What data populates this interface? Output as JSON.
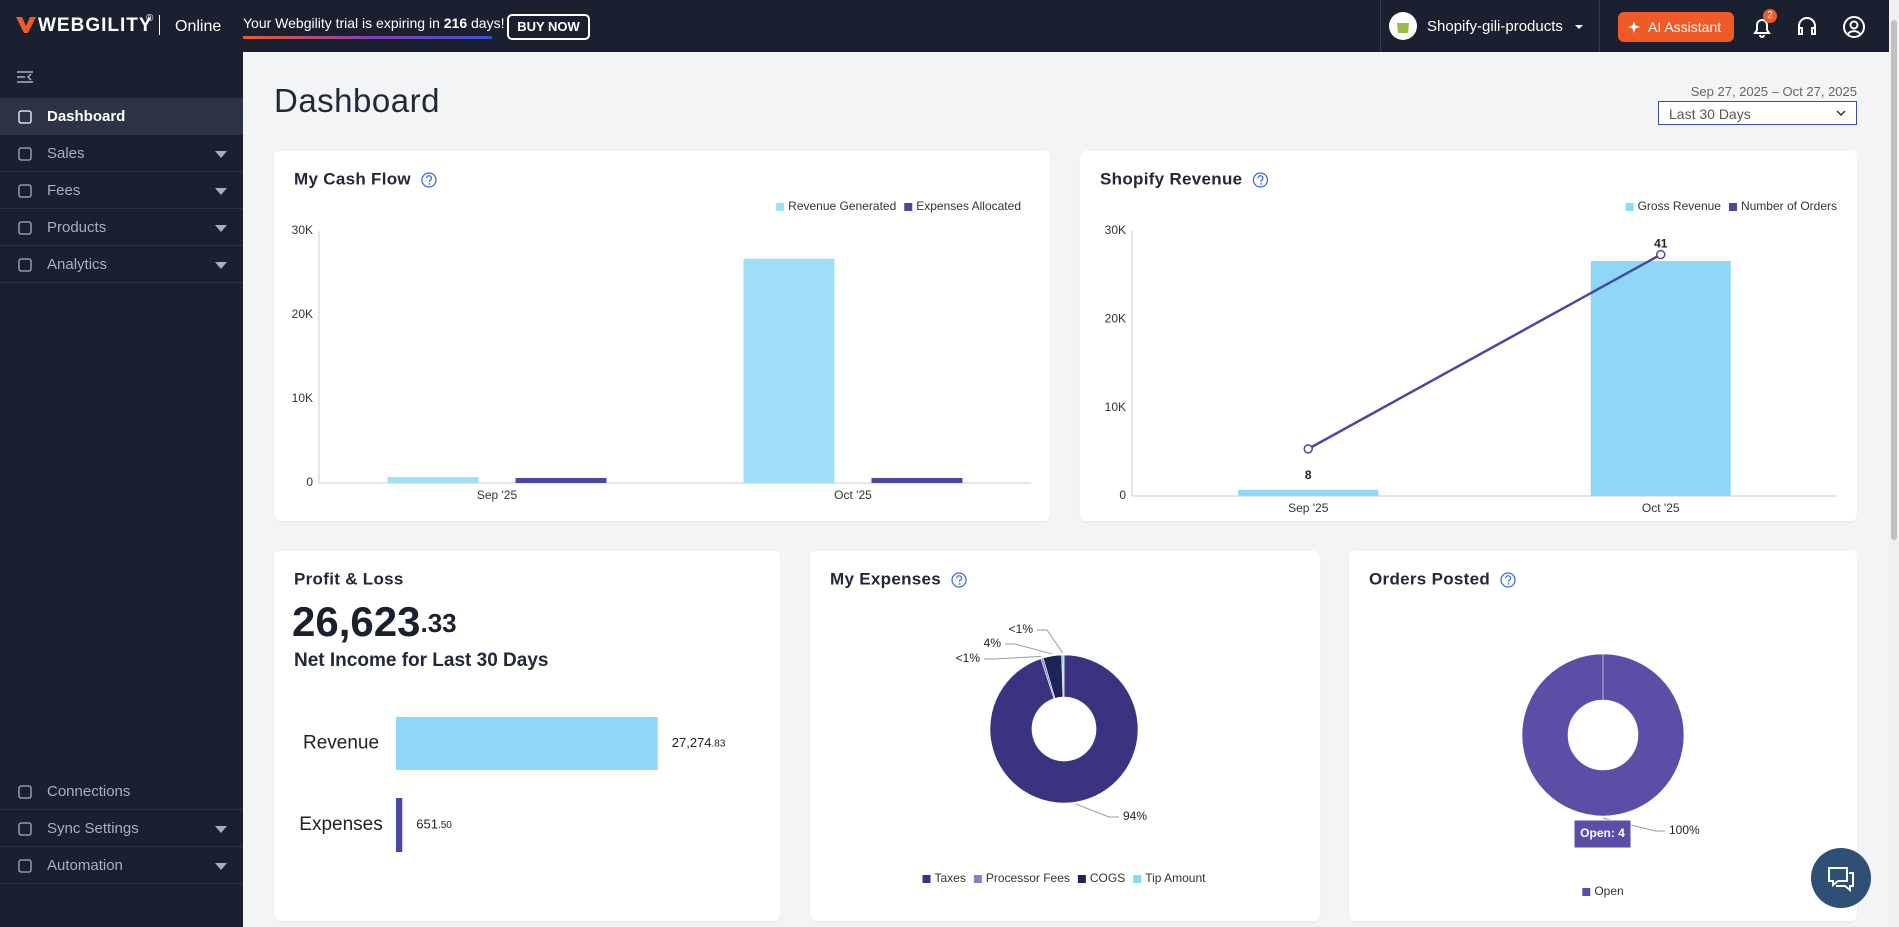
{
  "header": {
    "brand": "WEBGILITY",
    "brand_mark": "®",
    "edition": "Online",
    "trial_text": "Your Webgility trial is expiring in",
    "trial_days": "216",
    "trial_unit": "days!",
    "buy_now": "BUY NOW",
    "store": "Shopify-gili-products",
    "ai_assistant": "AI Assistant",
    "notification_count": 2
  },
  "sidebar": {
    "items": [
      {
        "label": "Dashboard",
        "active": true
      },
      {
        "label": "Sales",
        "expandable": true
      },
      {
        "label": "Fees",
        "expandable": true
      },
      {
        "label": "Products",
        "expandable": true
      },
      {
        "label": "Analytics",
        "expandable": true
      }
    ],
    "footer_items": [
      {
        "label": "Connections"
      },
      {
        "label": "Sync Settings",
        "expandable": true
      },
      {
        "label": "Automation",
        "expandable": true
      }
    ]
  },
  "page": {
    "title": "Dashboard",
    "date_range": "Sep 27, 2025 – Oct 27, 2025",
    "period": "Last 30 Days"
  },
  "profit_loss": {
    "title": "Profit & Loss",
    "net_income": "26,623.33",
    "caption": "Net Income for Last 30 Days"
  },
  "chart_data": [
    {
      "type": "bar",
      "title": "My Cash Flow",
      "legend": "top-right",
      "grid": false,
      "categories": [
        "Sep '25",
        "Oct '25"
      ],
      "series": [
        {
          "name": "Revenue Generated",
          "color": "#a0dff8",
          "values": [
            700,
            26700
          ]
        },
        {
          "name": "Expenses Allocated",
          "color": "#4c48a0",
          "values": [
            600,
            600
          ]
        }
      ],
      "ylim": [
        0,
        30000
      ],
      "yticks": [
        0,
        {
          "value": 10000,
          "label": "10K"
        },
        {
          "value": 20000,
          "label": "20K"
        },
        {
          "value": 30000,
          "label": "30K"
        }
      ]
    },
    {
      "type": "bar",
      "title": "Shopify Revenue",
      "legend": "top-right",
      "grid": false,
      "categories": [
        "Sep '25",
        "Oct '25"
      ],
      "series": [
        {
          "name": "Gross Revenue",
          "color": "#8ed7f7",
          "values": [
            700,
            26600
          ]
        },
        {
          "name": "Number of Orders",
          "color": "#4c48a0",
          "type": "line",
          "axis": "y2",
          "values": [
            8,
            41
          ]
        }
      ],
      "ylim": [
        0,
        30000
      ],
      "yticks": [
        0,
        {
          "value": 10000,
          "label": "10K"
        },
        {
          "value": 20000,
          "label": "20K"
        },
        {
          "value": 30000,
          "label": "30K"
        }
      ],
      "y2lim": [
        0,
        45
      ]
    },
    {
      "type": "hbar",
      "categories": [
        "Revenue",
        "Expenses"
      ],
      "colors": [
        "#8ed7f7",
        "#4c48a0"
      ],
      "values": [
        27274.83,
        651.5
      ],
      "value_labels": [
        "27,274.83",
        "651.50"
      ],
      "xlim": [
        0,
        27300
      ]
    },
    {
      "type": "pie",
      "title": "My Expenses",
      "donut": true,
      "legend": "bottom",
      "categories": [
        "Taxes",
        "Processor Fees",
        "COGS",
        "Tip Amount"
      ],
      "colors": [
        "#3a3480",
        "#8580c4",
        "#1f2457",
        "#8ed7f7"
      ],
      "values": [
        94,
        0.5,
        4,
        0.5
      ],
      "value_labels": [
        "94%",
        "<1%",
        "4%",
        "<1%"
      ]
    },
    {
      "type": "pie",
      "title": "Orders Posted",
      "donut": true,
      "legend": "bottom",
      "categories": [
        "Open"
      ],
      "colors": [
        "#5a4ea7"
      ],
      "values": [
        100
      ],
      "value_labels": [
        "100%"
      ],
      "tooltip": "Open: 4"
    }
  ]
}
